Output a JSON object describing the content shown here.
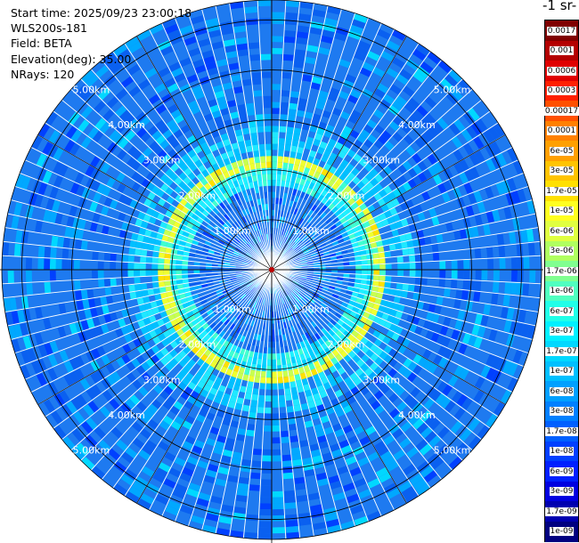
{
  "header": {
    "start_time": "Start time: 2025/09/23 23:00:18",
    "instrument": "WLS200s-181",
    "field": "Field: BETA",
    "elevation": "Elevation(deg): 35.00",
    "nrays": "NRays: 120"
  },
  "colorbar": {
    "unit_label": "-1 sr-",
    "ticks": [
      "0.0017",
      "0.001",
      "0.0006",
      "0.0003",
      "0.00017",
      "0.0001",
      "6e-05",
      "3e-05",
      "1.7e-05",
      "1e-05",
      "6e-06",
      "3e-06",
      "1.7e-06",
      "1e-06",
      "6e-07",
      "3e-07",
      "1.7e-07",
      "1e-07",
      "6e-08",
      "3e-08",
      "1.7e-08",
      "1e-08",
      "6e-09",
      "3e-09",
      "1.7e-09",
      "1e-09"
    ],
    "colors": [
      "#800000",
      "#b40000",
      "#e00000",
      "#ff2000",
      "#ff5000",
      "#ff8000",
      "#ffa000",
      "#ffc400",
      "#ffe000",
      "#ffff20",
      "#e0ff40",
      "#b0ff60",
      "#80ff90",
      "#50ffc0",
      "#20ffe8",
      "#00f0ff",
      "#00d8ff",
      "#00c0ff",
      "#00a0ff",
      "#0080ff",
      "#0060ff",
      "#0040ff",
      "#0020ff",
      "#0000e0",
      "#0000b0",
      "#000080"
    ]
  },
  "chart_data": {
    "type": "heatmap",
    "projection": "polar-ppi",
    "field": "BETA",
    "elevation_deg": 35.0,
    "n_rays": 120,
    "range_rings_km": [
      1,
      2,
      3,
      4,
      5
    ],
    "range_labels": [
      "1.00km",
      "2.00km",
      "3.00km",
      "4.00km",
      "5.00km"
    ],
    "max_range_km": 5.4,
    "spoke_interval_deg": 30,
    "enhanced_band_km": [
      2.05,
      2.3
    ],
    "background_level": "1e-08 to 3e-08",
    "band_level": "1e-06 to 1.7e-05"
  }
}
